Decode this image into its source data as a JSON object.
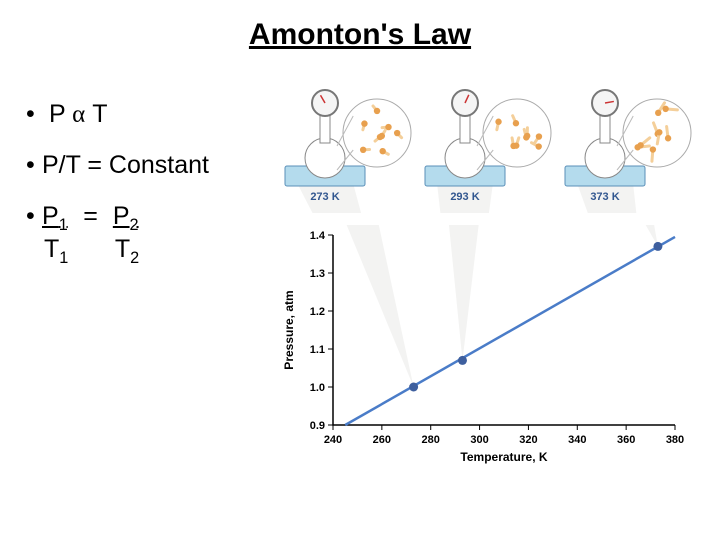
{
  "title": "Amonton's Law",
  "bullets": {
    "b1_prefix": "P",
    "b1_symbol": "α",
    "b1_suffix": "T",
    "b2": "P/T = Constant",
    "b3_p1": "P",
    "b3_s1": "1",
    "b3_eq": "=",
    "b3_p2": "P",
    "b3_s2": "2",
    "b3_t1": "T",
    "b3_ts1": "1",
    "b3_t2": "T",
    "b3_ts2": "2"
  },
  "flasks": [
    {
      "label": "273 K",
      "particles": 8,
      "speed": 0.4
    },
    {
      "label": "293 K",
      "particles": 8,
      "speed": 0.7
    },
    {
      "label": "373 K",
      "particles": 8,
      "speed": 1.3
    }
  ],
  "chart": {
    "type": "line",
    "xlabel": "Temperature, K",
    "ylabel": "Pressure, atm",
    "xlim": [
      240,
      380
    ],
    "ylim": [
      0.9,
      1.4
    ],
    "xticks": [
      240,
      260,
      280,
      300,
      320,
      340,
      360,
      380
    ],
    "yticks": [
      0.9,
      1.0,
      1.1,
      1.2,
      1.3,
      1.4
    ],
    "xtick_labels": [
      "240",
      "260",
      "280",
      "300",
      "320",
      "340",
      "360",
      "380"
    ],
    "ytick_labels": [
      "0.9",
      "1.0",
      "1.1",
      "1.2",
      "1.3",
      "1.4"
    ],
    "line_color": "#4a7cc8",
    "point_color": "#3e5f9e",
    "axis_color": "#000000",
    "grid_color": "#e0e0e0",
    "background": "#ffffff",
    "data_points": [
      {
        "x": 273,
        "y": 1.0
      },
      {
        "x": 293,
        "y": 1.07
      },
      {
        "x": 373,
        "y": 1.37
      }
    ],
    "line_extent": {
      "x0": 245,
      "y0": 0.9,
      "x1": 380,
      "y1": 1.395
    }
  },
  "cone_color": "#f3f3f2",
  "water_color": "#b4dbed",
  "water_border": "#5a8fb8",
  "flask_fill": "#ffffff",
  "flask_stroke": "#888888",
  "particle_color": "#e8a04e",
  "particle_tail": "#f4cf9a",
  "gauge_fill": "#f5f5f5",
  "gauge_stroke": "#777777"
}
